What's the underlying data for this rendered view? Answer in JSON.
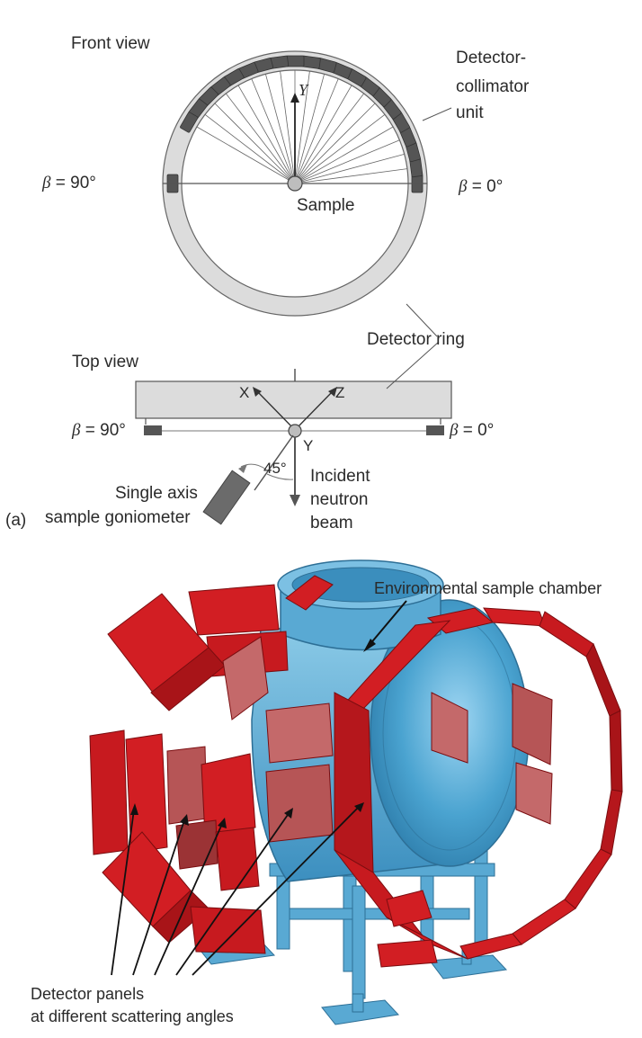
{
  "panel_a": {
    "front_view_label": "Front view",
    "top_view_label": "Top view",
    "panel_tag": "(a)",
    "detector_unit_label_line1": "Detector-",
    "detector_unit_label_line2": "collimator",
    "detector_unit_label_line3": "unit",
    "beta_symbol": "β",
    "beta_90": "= 90°",
    "beta_0": "= 0°",
    "sample_label": "Sample",
    "detector_ring_label": "Detector ring",
    "axis_y": "Y",
    "axis_x": "X",
    "axis_z": "Z",
    "angle_label": "45°",
    "incident_line1": "Incident",
    "incident_line2": "neutron",
    "incident_line3": "beam",
    "goniometer_line1": "Single axis",
    "goniometer_line2": "sample goniometer"
  },
  "panel_b": {
    "chamber_label": "Environmental sample chamber",
    "panels_line1": "Detector panels",
    "panels_line2": "at different scattering angles"
  },
  "colors": {
    "ring_fill": "#dcdcdc",
    "detector_gray": "#555555",
    "panel_red": "#d21e23",
    "panel_dark_red": "#a81418",
    "panel_pink": "#c4696a",
    "chamber_blue": "#4aa3d0",
    "chamber_light_blue": "#8ccbe8"
  }
}
